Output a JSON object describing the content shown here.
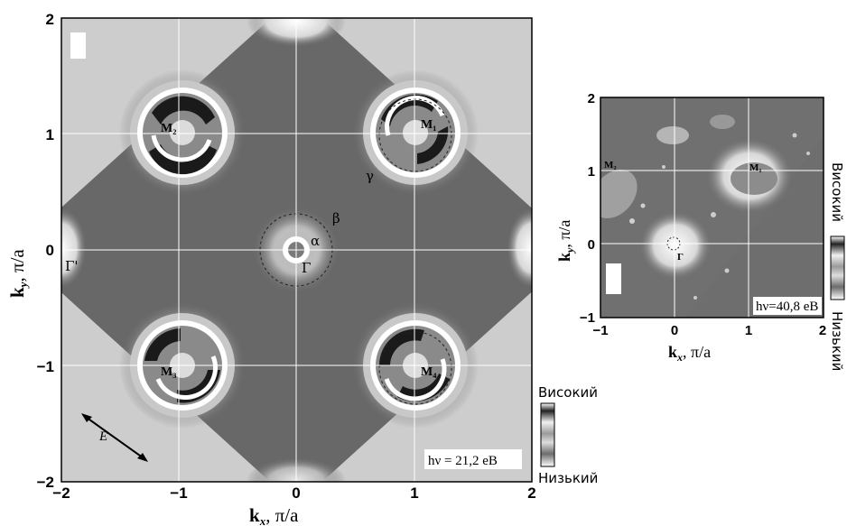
{
  "figure": {
    "left_panel": {
      "x_ticks": [
        "−2",
        "−1",
        "0",
        "1",
        "2"
      ],
      "y_ticks": [
        "2",
        "1",
        "0",
        "−1",
        "−2"
      ],
      "x_label": "k",
      "x_sub": "x",
      "x_unit": ", π/a",
      "y_label": "k",
      "y_sub": "y",
      "y_unit": ", π/a",
      "points": {
        "m1": "M₁",
        "m2": "M₂",
        "m3": "M₃",
        "m4": "M₄",
        "gamma_point": "Γ",
        "gamma_prime": "Γ'"
      },
      "bands": {
        "alpha": "α",
        "beta": "β",
        "gamma": "γ"
      },
      "polarization": "E",
      "photon_energy": "hν = 21,2 eB",
      "scale_high": "Високий",
      "scale_low": "Низький"
    },
    "right_panel": {
      "x_ticks": [
        "−1",
        "0",
        "1",
        "2"
      ],
      "y_ticks": [
        "2",
        "1",
        "0",
        "−1"
      ],
      "x_label": "k",
      "x_sub": "x",
      "x_unit": ", π/a",
      "y_label": "k",
      "y_sub": "y",
      "y_unit": ", π/a",
      "points": {
        "m1": "M₁",
        "m2": "M₂",
        "gamma_point": "Γ"
      },
      "photon_energy": "hν=40,8 eB",
      "scale_high": "Високий",
      "scale_low": "Низький"
    }
  }
}
